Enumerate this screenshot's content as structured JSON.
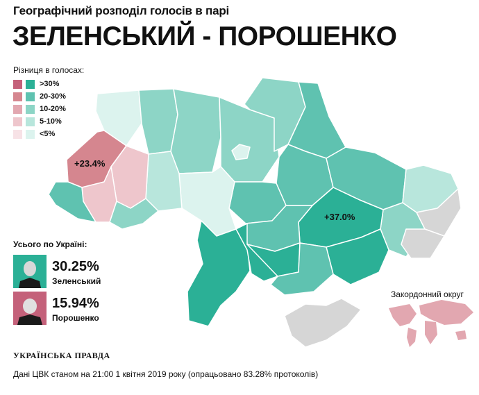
{
  "header": {
    "subtitle": "Географічний розподіл голосів в парі",
    "title": "ЗЕЛЕНСЬКИЙ - ПОРОШЕНКО"
  },
  "legend": {
    "title": "Різниця в голосах:",
    "items": [
      {
        "label": ">30%",
        "poroshenko_color": "#c4617a",
        "zelensky_color": "#2bb096"
      },
      {
        "label": "20-30%",
        "poroshenko_color": "#d5868f",
        "zelensky_color": "#5fc2b0"
      },
      {
        "label": "10-20%",
        "poroshenko_color": "#e2a7b0",
        "zelensky_color": "#8dd5c6"
      },
      {
        "label": "5-10%",
        "poroshenko_color": "#eec6cc",
        "zelensky_color": "#b8e6dc"
      },
      {
        "label": "<5%",
        "poroshenko_color": "#f7e2e6",
        "zelensky_color": "#dcf3ee"
      }
    ]
  },
  "map": {
    "labels": {
      "lviv": "+23.4%",
      "dnipro": "+37.0%"
    },
    "no_data_color": "#d6d6d6",
    "abroad_label": "Закордонний округ"
  },
  "totals": {
    "title": "Усього по Україні:",
    "candidates": [
      {
        "name": "Зеленський",
        "percent": "30.25%",
        "color": "#2bb096",
        "icon": "zelensky-photo"
      },
      {
        "name": "Порошенко",
        "percent": "15.94%",
        "color": "#c4617a",
        "icon": "poroshenko-photo"
      }
    ]
  },
  "brand": "УКРАЇНСЬКА ПРАВДА",
  "footnote": "Дані ЦВК станом на 21:00 1 квітня 2019 року (опрацьовано 83.28% протоколів)"
}
